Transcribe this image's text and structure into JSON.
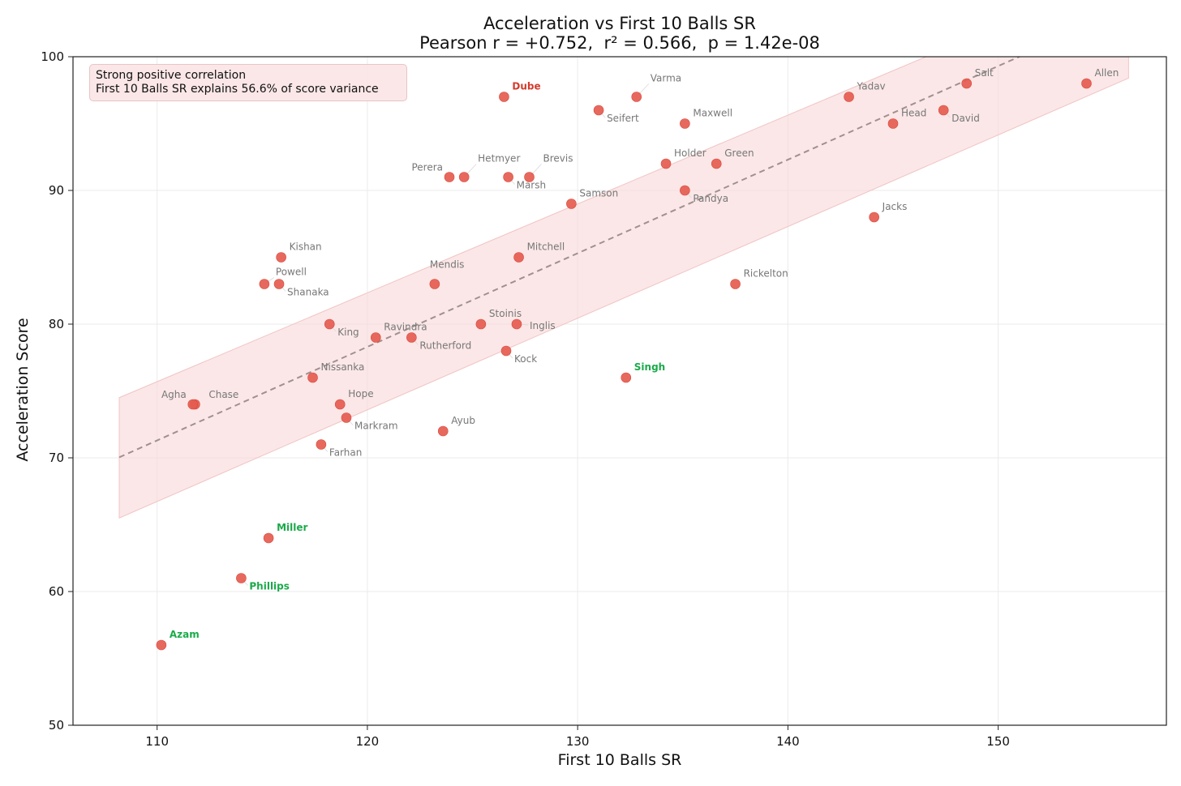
{
  "chart_data": {
    "type": "scatter",
    "title": "Acceleration vs First 10 Balls SR",
    "subtitle": "Pearson r = +0.752,  r² = 0.566,  p = 1.42e-08",
    "xlabel": "First 10 Balls SR",
    "ylabel": "Acceleration Score",
    "xlim": [
      106,
      158
    ],
    "ylim": [
      50,
      100
    ],
    "xticks": [
      110,
      120,
      130,
      140,
      150
    ],
    "yticks": [
      50,
      60,
      70,
      80,
      90,
      100
    ],
    "grid": true,
    "annotation": {
      "line1": "Strong positive correlation",
      "line2": "First 10 Balls SR explains 56.6% of score variance",
      "placement": "top-left"
    },
    "regression": {
      "x_range": [
        108.2,
        156.2
      ],
      "slope": 0.7,
      "intercept": -5.7,
      "band_at_start": [
        65.5,
        74.5
      ],
      "band_at_end": [
        98.4,
        106.4
      ],
      "line_color": "#a09090",
      "band_color": "#f8d7d7"
    },
    "colors": {
      "point": "#e55c50",
      "label_default": "#777777",
      "label_over": "#d33a2c",
      "label_under": "#1aaa4a"
    },
    "points": [
      {
        "name": "Allen",
        "x": 154.2,
        "y": 98,
        "label": "default",
        "lpos": "ne"
      },
      {
        "name": "Salt",
        "x": 148.5,
        "y": 98,
        "label": "default",
        "lpos": "ne"
      },
      {
        "name": "David",
        "x": 147.4,
        "y": 96,
        "label": "default",
        "lpos": "se"
      },
      {
        "name": "Yadav",
        "x": 142.9,
        "y": 97,
        "label": "default",
        "lpos": "ne"
      },
      {
        "name": "Head",
        "x": 145.0,
        "y": 95,
        "label": "default",
        "lpos": "ne"
      },
      {
        "name": "Jacks",
        "x": 144.1,
        "y": 88,
        "label": "default",
        "lpos": "ne"
      },
      {
        "name": "Rickelton",
        "x": 137.5,
        "y": 83,
        "label": "default",
        "lpos": "ne"
      },
      {
        "name": "Green",
        "x": 136.6,
        "y": 92,
        "label": "default",
        "lpos": "ne"
      },
      {
        "name": "Holder",
        "x": 134.2,
        "y": 92,
        "label": "default",
        "lpos": "ne"
      },
      {
        "name": "Pandya",
        "x": 135.1,
        "y": 90,
        "label": "default",
        "lpos": "se"
      },
      {
        "name": "Maxwell",
        "x": 135.1,
        "y": 95,
        "label": "default",
        "lpos": "ne"
      },
      {
        "name": "Varma",
        "x": 132.8,
        "y": 97,
        "label": "default",
        "lpos": "ne_far"
      },
      {
        "name": "Seifert",
        "x": 131.0,
        "y": 96,
        "label": "default",
        "lpos": "se"
      },
      {
        "name": "Singh",
        "x": 132.3,
        "y": 76,
        "label": "under",
        "lpos": "ne"
      },
      {
        "name": "Samson",
        "x": 129.7,
        "y": 89,
        "label": "default",
        "lpos": "ne"
      },
      {
        "name": "Brevis",
        "x": 127.7,
        "y": 91,
        "label": "default",
        "lpos": "ne_far"
      },
      {
        "name": "Marsh",
        "x": 126.7,
        "y": 91,
        "label": "default",
        "lpos": "se"
      },
      {
        "name": "Hetmyer",
        "x": 124.6,
        "y": 91,
        "label": "default",
        "lpos": "ne_far"
      },
      {
        "name": "Perera",
        "x": 123.9,
        "y": 91,
        "label": "default",
        "lpos": "nw"
      },
      {
        "name": "Dube",
        "x": 126.5,
        "y": 97,
        "label": "over",
        "lpos": "ne"
      },
      {
        "name": "Mitchell",
        "x": 127.2,
        "y": 85,
        "label": "default",
        "lpos": "ne"
      },
      {
        "name": "Mendis",
        "x": 123.2,
        "y": 83,
        "label": "default",
        "lpos": "n"
      },
      {
        "name": "Stoinis",
        "x": 125.4,
        "y": 80,
        "label": "default",
        "lpos": "ne"
      },
      {
        "name": "Inglis",
        "x": 127.1,
        "y": 80,
        "label": "default",
        "lpos": "e"
      },
      {
        "name": "Kock",
        "x": 126.6,
        "y": 78,
        "label": "default",
        "lpos": "se"
      },
      {
        "name": "Ravindra",
        "x": 120.4,
        "y": 79,
        "label": "default",
        "lpos": "ne"
      },
      {
        "name": "Rutherford",
        "x": 122.1,
        "y": 79,
        "label": "default",
        "lpos": "se"
      },
      {
        "name": "Ayub",
        "x": 123.6,
        "y": 72,
        "label": "default",
        "lpos": "ne"
      },
      {
        "name": "King",
        "x": 118.2,
        "y": 80,
        "label": "default",
        "lpos": "se"
      },
      {
        "name": "Nissanka",
        "x": 117.4,
        "y": 76,
        "label": "default",
        "lpos": "ne"
      },
      {
        "name": "Hope",
        "x": 118.7,
        "y": 74,
        "label": "default",
        "lpos": "ne"
      },
      {
        "name": "Markram",
        "x": 119.0,
        "y": 73,
        "label": "default",
        "lpos": "se"
      },
      {
        "name": "Farhan",
        "x": 117.8,
        "y": 71,
        "label": "default",
        "lpos": "se"
      },
      {
        "name": "Kishan",
        "x": 115.9,
        "y": 85,
        "label": "default",
        "lpos": "ne"
      },
      {
        "name": "Powell",
        "x": 115.1,
        "y": 83,
        "label": "default",
        "lpos": "ne_pw"
      },
      {
        "name": "Shanaka",
        "x": 115.8,
        "y": 83,
        "label": "default",
        "lpos": "se"
      },
      {
        "name": "Chase",
        "x": 111.8,
        "y": 74,
        "label": "default",
        "lpos": "ne_ch"
      },
      {
        "name": "Agha",
        "x": 111.7,
        "y": 74,
        "label": "default",
        "lpos": "nw"
      },
      {
        "name": "Miller",
        "x": 115.3,
        "y": 64,
        "label": "under",
        "lpos": "ne"
      },
      {
        "name": "Phillips",
        "x": 114.0,
        "y": 61,
        "label": "under",
        "lpos": "se"
      },
      {
        "name": "Azam",
        "x": 110.2,
        "y": 56,
        "label": "under",
        "lpos": "ne"
      }
    ]
  }
}
